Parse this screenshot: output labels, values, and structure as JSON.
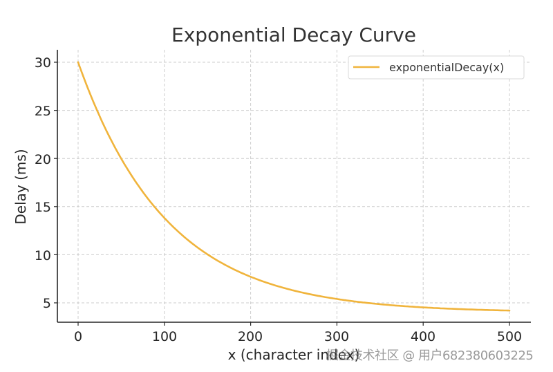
{
  "chart_data": {
    "type": "line",
    "title": "Exponential Decay Curve",
    "xlabel": "x (character index)",
    "ylabel": "Delay (ms)",
    "xlim": [
      -25,
      525
    ],
    "ylim": [
      3.0,
      31.3
    ],
    "xticks": [
      0,
      100,
      200,
      300,
      400,
      500
    ],
    "yticks": [
      5,
      10,
      15,
      20,
      25,
      30
    ],
    "grid": true,
    "legend_position": "upper right",
    "series": [
      {
        "name": "exponentialDecay(x)",
        "color": "#F0B43C",
        "x": [
          0,
          25,
          50,
          75,
          100,
          125,
          150,
          175,
          200,
          250,
          300,
          350,
          400,
          450,
          500
        ],
        "values": [
          30.0,
          23.0,
          17.9,
          14.2,
          13.7,
          9.4,
          8.0,
          6.9,
          7.6,
          5.1,
          5.3,
          4.3,
          4.5,
          4.1,
          4.2
        ]
      }
    ]
  },
  "title": "Exponential Decay Curve",
  "xlabel": "x (character index)",
  "ylabel": "Delay (ms)",
  "legend": {
    "label": "exponentialDecay(x)"
  },
  "xtick_labels": [
    "0",
    "100",
    "200",
    "300",
    "400",
    "500"
  ],
  "ytick_labels": [
    "5",
    "10",
    "15",
    "20",
    "25",
    "30"
  ],
  "watermark": "掘金技术社区 @ 用户682380603225",
  "colors": {
    "line": "#F0B43C",
    "grid": "#CCCCCC",
    "axis": "#262626"
  }
}
